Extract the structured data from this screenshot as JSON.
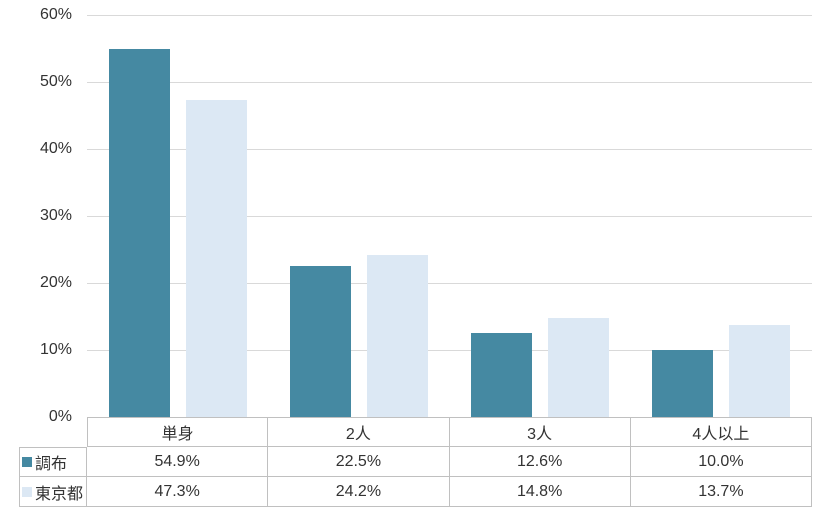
{
  "chart_data": {
    "type": "bar",
    "title": "",
    "xlabel": "",
    "ylabel": "",
    "categories": [
      "単身",
      "2人",
      "3人",
      "4人以上"
    ],
    "series": [
      {
        "name": "調布",
        "color": "#4589A2",
        "values": [
          54.9,
          22.5,
          12.6,
          10.0
        ]
      },
      {
        "name": "東京都",
        "color": "#DCE8F4",
        "values": [
          47.3,
          24.2,
          14.8,
          13.7
        ]
      }
    ],
    "ylim": [
      0,
      60
    ],
    "ytick_step": 10,
    "tick_suffix": "%",
    "value_suffix": "%",
    "value_decimals": 1,
    "grid": true,
    "legend_position": "table-left"
  },
  "colors": {
    "background": "#FFFFFF",
    "gridline": "#D9D9D9",
    "table_border": "#C0C0C0",
    "text": "#333333"
  }
}
